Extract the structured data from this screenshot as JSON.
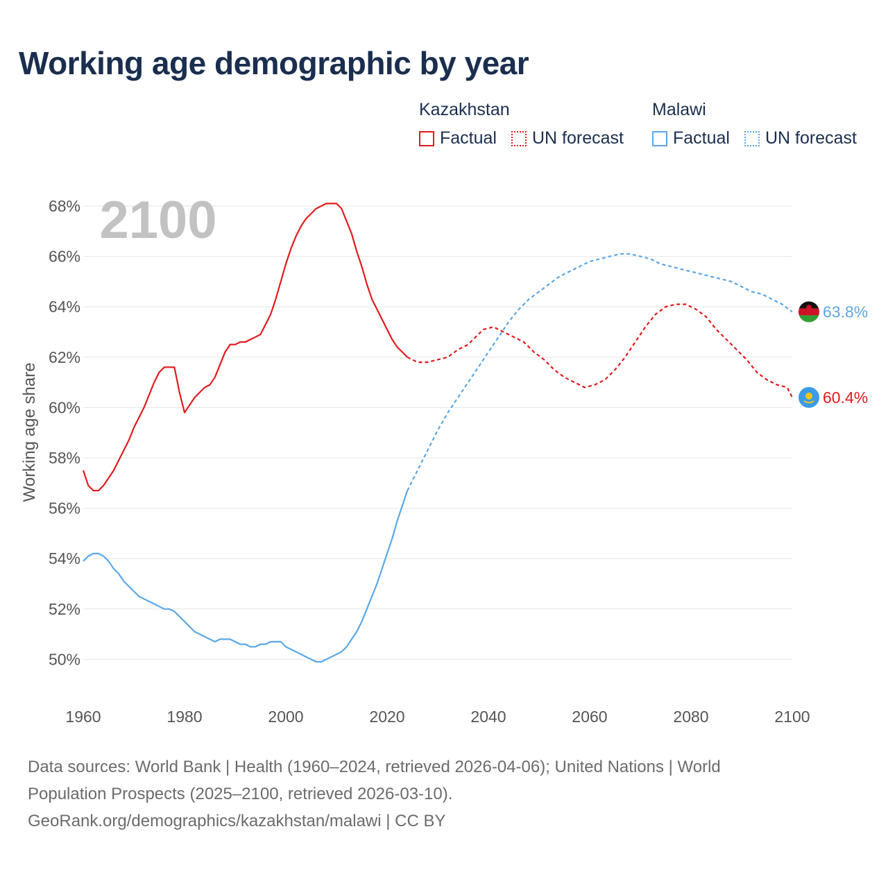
{
  "title": "Working age demographic by year",
  "legend": {
    "kazakhstan": {
      "label": "Kazakhstan",
      "factual": "Factual",
      "forecast": "UN forecast",
      "color": "#e31a1c"
    },
    "malawi": {
      "label": "Malawi",
      "factual": "Factual",
      "forecast": "UN forecast",
      "color": "#5aa6e6"
    }
  },
  "source": {
    "line1": "Data sources: World Bank | Health (1960–2024, retrieved 2026-04-06); United Nations | World",
    "line2": "Population Prospects (2025–2100, retrieved 2026-03-10).",
    "line3": "GeoRank.org/demographics/kazakhstan/malawi | CC BY"
  },
  "chart_data": {
    "type": "line",
    "year_label": "2100",
    "ylabel": "Working age share",
    "xlim": [
      1960,
      2100
    ],
    "ylim": [
      48.5,
      68.5
    ],
    "x_ticks": [
      "1960",
      "1980",
      "2000",
      "2020",
      "2040",
      "2060",
      "2080",
      "2100"
    ],
    "y_ticks": [
      "50%",
      "52%",
      "54%",
      "56%",
      "58%",
      "60%",
      "62%",
      "64%",
      "66%",
      "68%"
    ],
    "grid": true,
    "series": [
      {
        "name": "Kazakhstan",
        "color": "#e31a1c",
        "end_label": "60.4%",
        "flag_icon": "kazakhstan-flag-icon",
        "factual": [
          [
            1960,
            57.5
          ],
          [
            1961,
            56.9
          ],
          [
            1962,
            56.7
          ],
          [
            1963,
            56.7
          ],
          [
            1964,
            56.9
          ],
          [
            1965,
            57.2
          ],
          [
            1966,
            57.5
          ],
          [
            1967,
            57.9
          ],
          [
            1968,
            58.3
          ],
          [
            1969,
            58.7
          ],
          [
            1970,
            59.2
          ],
          [
            1971,
            59.6
          ],
          [
            1972,
            60.0
          ],
          [
            1973,
            60.5
          ],
          [
            1974,
            61.0
          ],
          [
            1975,
            61.4
          ],
          [
            1976,
            61.6
          ],
          [
            1977,
            61.6
          ],
          [
            1978,
            61.6
          ],
          [
            1979,
            60.6
          ],
          [
            1980,
            59.8
          ],
          [
            1981,
            60.1
          ],
          [
            1982,
            60.4
          ],
          [
            1983,
            60.6
          ],
          [
            1984,
            60.8
          ],
          [
            1985,
            60.9
          ],
          [
            1986,
            61.2
          ],
          [
            1987,
            61.7
          ],
          [
            1988,
            62.2
          ],
          [
            1989,
            62.5
          ],
          [
            1990,
            62.5
          ],
          [
            1991,
            62.6
          ],
          [
            1992,
            62.6
          ],
          [
            1993,
            62.7
          ],
          [
            1994,
            62.8
          ],
          [
            1995,
            62.9
          ],
          [
            1996,
            63.3
          ],
          [
            1997,
            63.7
          ],
          [
            1998,
            64.3
          ],
          [
            1999,
            65.0
          ],
          [
            2000,
            65.7
          ],
          [
            2001,
            66.3
          ],
          [
            2002,
            66.8
          ],
          [
            2003,
            67.2
          ],
          [
            2004,
            67.5
          ],
          [
            2005,
            67.7
          ],
          [
            2006,
            67.9
          ],
          [
            2007,
            68.0
          ],
          [
            2008,
            68.1
          ],
          [
            2009,
            68.1
          ],
          [
            2010,
            68.1
          ],
          [
            2011,
            67.9
          ],
          [
            2012,
            67.4
          ],
          [
            2013,
            66.9
          ],
          [
            2014,
            66.2
          ],
          [
            2015,
            65.6
          ],
          [
            2016,
            64.9
          ],
          [
            2017,
            64.3
          ],
          [
            2018,
            63.9
          ],
          [
            2019,
            63.5
          ],
          [
            2020,
            63.1
          ],
          [
            2021,
            62.7
          ],
          [
            2022,
            62.4
          ],
          [
            2023,
            62.2
          ],
          [
            2024,
            62.0
          ]
        ],
        "forecast": [
          [
            2024,
            62.0
          ],
          [
            2026,
            61.8
          ],
          [
            2028,
            61.8
          ],
          [
            2030,
            61.9
          ],
          [
            2032,
            62.0
          ],
          [
            2034,
            62.3
          ],
          [
            2036,
            62.5
          ],
          [
            2038,
            62.9
          ],
          [
            2039,
            63.1
          ],
          [
            2041,
            63.2
          ],
          [
            2043,
            63.0
          ],
          [
            2045,
            62.8
          ],
          [
            2047,
            62.6
          ],
          [
            2049,
            62.2
          ],
          [
            2051,
            61.9
          ],
          [
            2053,
            61.5
          ],
          [
            2055,
            61.2
          ],
          [
            2057,
            61.0
          ],
          [
            2059,
            60.8
          ],
          [
            2061,
            60.9
          ],
          [
            2063,
            61.1
          ],
          [
            2065,
            61.5
          ],
          [
            2067,
            62.0
          ],
          [
            2069,
            62.6
          ],
          [
            2071,
            63.2
          ],
          [
            2073,
            63.7
          ],
          [
            2075,
            64.0
          ],
          [
            2077,
            64.1
          ],
          [
            2079,
            64.1
          ],
          [
            2081,
            63.9
          ],
          [
            2083,
            63.6
          ],
          [
            2085,
            63.1
          ],
          [
            2087,
            62.7
          ],
          [
            2089,
            62.3
          ],
          [
            2091,
            61.9
          ],
          [
            2093,
            61.4
          ],
          [
            2095,
            61.1
          ],
          [
            2097,
            60.9
          ],
          [
            2099,
            60.8
          ],
          [
            2100,
            60.4
          ]
        ]
      },
      {
        "name": "Malawi",
        "color": "#5aa6e6",
        "end_label": "63.8%",
        "flag_icon": "malawi-flag-icon",
        "factual": [
          [
            1960,
            53.9
          ],
          [
            1961,
            54.1
          ],
          [
            1962,
            54.2
          ],
          [
            1963,
            54.2
          ],
          [
            1964,
            54.1
          ],
          [
            1965,
            53.9
          ],
          [
            1966,
            53.6
          ],
          [
            1967,
            53.4
          ],
          [
            1968,
            53.1
          ],
          [
            1969,
            52.9
          ],
          [
            1970,
            52.7
          ],
          [
            1971,
            52.5
          ],
          [
            1972,
            52.4
          ],
          [
            1973,
            52.3
          ],
          [
            1974,
            52.2
          ],
          [
            1975,
            52.1
          ],
          [
            1976,
            52.0
          ],
          [
            1977,
            52.0
          ],
          [
            1978,
            51.9
          ],
          [
            1979,
            51.7
          ],
          [
            1980,
            51.5
          ],
          [
            1981,
            51.3
          ],
          [
            1982,
            51.1
          ],
          [
            1983,
            51.0
          ],
          [
            1984,
            50.9
          ],
          [
            1985,
            50.8
          ],
          [
            1986,
            50.7
          ],
          [
            1987,
            50.8
          ],
          [
            1988,
            50.8
          ],
          [
            1989,
            50.8
          ],
          [
            1990,
            50.7
          ],
          [
            1991,
            50.6
          ],
          [
            1992,
            50.6
          ],
          [
            1993,
            50.5
          ],
          [
            1994,
            50.5
          ],
          [
            1995,
            50.6
          ],
          [
            1996,
            50.6
          ],
          [
            1997,
            50.7
          ],
          [
            1998,
            50.7
          ],
          [
            1999,
            50.7
          ],
          [
            2000,
            50.5
          ],
          [
            2001,
            50.4
          ],
          [
            2002,
            50.3
          ],
          [
            2003,
            50.2
          ],
          [
            2004,
            50.1
          ],
          [
            2005,
            50.0
          ],
          [
            2006,
            49.9
          ],
          [
            2007,
            49.9
          ],
          [
            2008,
            50.0
          ],
          [
            2009,
            50.1
          ],
          [
            2010,
            50.2
          ],
          [
            2011,
            50.3
          ],
          [
            2012,
            50.5
          ],
          [
            2013,
            50.8
          ],
          [
            2014,
            51.1
          ],
          [
            2015,
            51.5
          ],
          [
            2016,
            52.0
          ],
          [
            2017,
            52.5
          ],
          [
            2018,
            53.0
          ],
          [
            2019,
            53.6
          ],
          [
            2020,
            54.2
          ],
          [
            2021,
            54.8
          ],
          [
            2022,
            55.5
          ],
          [
            2023,
            56.1
          ],
          [
            2024,
            56.7
          ]
        ],
        "forecast": [
          [
            2024,
            56.7
          ],
          [
            2026,
            57.5
          ],
          [
            2028,
            58.3
          ],
          [
            2030,
            59.1
          ],
          [
            2032,
            59.8
          ],
          [
            2034,
            60.4
          ],
          [
            2036,
            61.0
          ],
          [
            2038,
            61.6
          ],
          [
            2040,
            62.2
          ],
          [
            2042,
            62.8
          ],
          [
            2044,
            63.4
          ],
          [
            2046,
            63.9
          ],
          [
            2048,
            64.3
          ],
          [
            2050,
            64.6
          ],
          [
            2052,
            64.9
          ],
          [
            2054,
            65.2
          ],
          [
            2056,
            65.4
          ],
          [
            2058,
            65.6
          ],
          [
            2060,
            65.8
          ],
          [
            2062,
            65.9
          ],
          [
            2064,
            66.0
          ],
          [
            2066,
            66.1
          ],
          [
            2068,
            66.1
          ],
          [
            2070,
            66.0
          ],
          [
            2072,
            65.9
          ],
          [
            2074,
            65.7
          ],
          [
            2076,
            65.6
          ],
          [
            2078,
            65.5
          ],
          [
            2080,
            65.4
          ],
          [
            2082,
            65.3
          ],
          [
            2084,
            65.2
          ],
          [
            2086,
            65.1
          ],
          [
            2088,
            65.0
          ],
          [
            2090,
            64.8
          ],
          [
            2092,
            64.6
          ],
          [
            2094,
            64.5
          ],
          [
            2096,
            64.3
          ],
          [
            2098,
            64.1
          ],
          [
            2100,
            63.8
          ]
        ]
      }
    ]
  }
}
